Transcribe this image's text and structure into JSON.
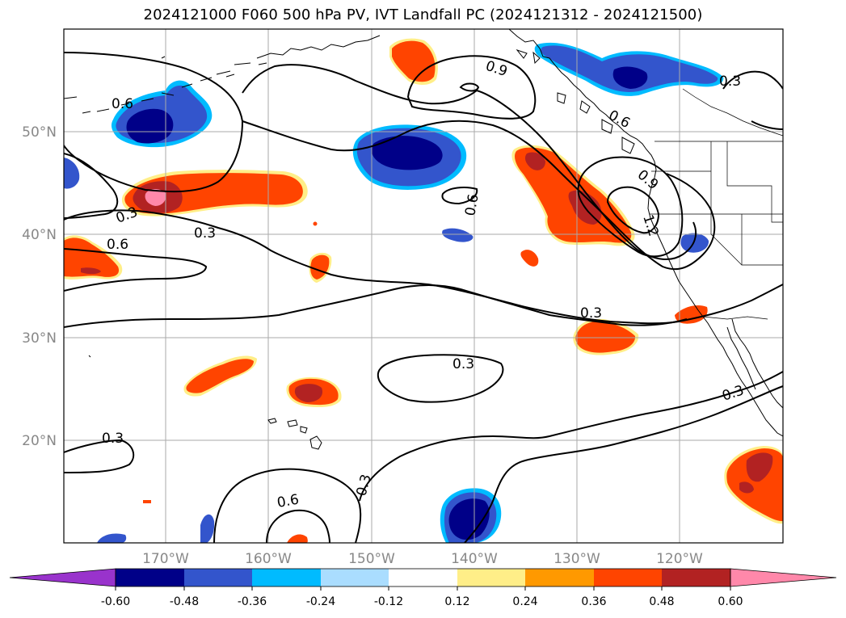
{
  "title": "2024121000 F060 500 hPa PV, IVT Landfall PC (2024121312 - 2024121500)",
  "map": {
    "projection": "PlateCarree",
    "lon_range": [
      -180,
      -110
    ],
    "lat_range": [
      10,
      60
    ],
    "longitude_ticks": [
      "170°W",
      "160°W",
      "150°W",
      "140°W",
      "130°W",
      "120°W"
    ],
    "latitude_ticks": [
      "50°N",
      "40°N",
      "30°N",
      "20°N"
    ],
    "gridlines": true,
    "features": [
      "coastlines",
      "country-borders",
      "state-borders"
    ],
    "contour_labels": [
      "0.6",
      "0.9",
      "0.3",
      "0.6",
      "0.9",
      "1.2",
      "0.3",
      "0.6",
      "0.3",
      "0.3",
      "0.3",
      "0.3",
      "0.6",
      "0.3",
      "0.3",
      "0.6"
    ]
  },
  "colorbar": {
    "extend": "both",
    "ticks": [
      "-0.60",
      "-0.48",
      "-0.36",
      "-0.24",
      "-0.12",
      "0.12",
      "0.24",
      "0.36",
      "0.48",
      "0.60"
    ],
    "colors": [
      "#9933cc",
      "#000088",
      "#3355cc",
      "#00bbff",
      "#aaddff",
      "#ffffff",
      "#ffee88",
      "#ff9900",
      "#ff4400",
      "#b22222",
      "#ff88aa"
    ]
  }
}
